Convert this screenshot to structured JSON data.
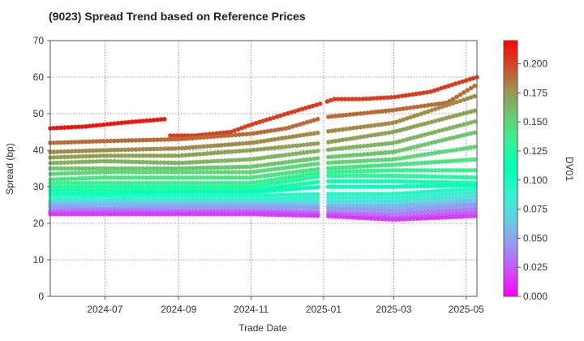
{
  "chart_data": {
    "type": "scatter",
    "title": "(9023)   Spread Trend based on Reference Prices",
    "xlabel": "Trade Date",
    "ylabel": "Spread (bp)",
    "colorbar_label": "DV01",
    "x_tick_labels": [
      "2024-07",
      "2024-09",
      "2024-11",
      "2025-01",
      "2025-03",
      "2025-05"
    ],
    "x_tick_dates": [
      "2024-07-01",
      "2024-09-01",
      "2024-11-01",
      "2025-01-01",
      "2025-03-01",
      "2025-05-01"
    ],
    "xlim": [
      "2024-05-16",
      "2025-05-10"
    ],
    "ylim": [
      0,
      70
    ],
    "y_ticks": [
      0,
      10,
      20,
      30,
      40,
      50,
      60,
      70
    ],
    "colorbar_ticks": [
      "0.000",
      "0.025",
      "0.050",
      "0.075",
      "0.100",
      "0.125",
      "0.150",
      "0.175",
      "0.200"
    ],
    "colorbar_range": [
      0,
      0.22
    ],
    "colormap": "rainbow",
    "grid": true,
    "series": [
      {
        "dv01": 0.214,
        "points": [
          [
            "2024-05-16",
            46
          ],
          [
            "2024-06-15",
            46.5
          ],
          [
            "2024-07-15",
            47.5
          ],
          [
            "2024-08-20",
            48.5
          ]
        ]
      },
      {
        "dv01": 0.203,
        "points": [
          [
            "2024-08-25",
            44
          ],
          [
            "2024-09-15",
            44
          ],
          [
            "2024-10-15",
            45
          ],
          [
            "2024-11-01",
            47
          ],
          [
            "2024-12-01",
            50
          ],
          [
            "2025-01-01",
            53
          ],
          [
            "2025-01-10",
            54
          ],
          [
            "2025-02-01",
            54
          ],
          [
            "2025-03-01",
            54.5
          ],
          [
            "2025-04-01",
            56
          ],
          [
            "2025-04-20",
            58
          ],
          [
            "2025-05-10",
            60
          ]
        ]
      },
      {
        "dv01": 0.19,
        "points": [
          [
            "2024-05-16",
            42
          ],
          [
            "2024-07-01",
            42.5
          ],
          [
            "2024-09-01",
            43
          ],
          [
            "2024-11-01",
            44.5
          ],
          [
            "2024-12-01",
            46
          ],
          [
            "2025-01-01",
            49
          ],
          [
            "2025-03-01",
            51
          ],
          [
            "2025-04-15",
            53
          ],
          [
            "2025-05-10",
            58
          ]
        ]
      },
      {
        "dv01": 0.18,
        "points": [
          [
            "2024-05-16",
            39.5
          ],
          [
            "2024-07-01",
            40
          ],
          [
            "2024-09-01",
            40.5
          ],
          [
            "2024-11-01",
            42
          ],
          [
            "2025-01-01",
            45
          ],
          [
            "2025-03-01",
            47.5
          ],
          [
            "2025-05-10",
            55
          ]
        ]
      },
      {
        "dv01": 0.172,
        "points": [
          [
            "2024-05-16",
            38
          ],
          [
            "2024-07-01",
            38.5
          ],
          [
            "2024-09-01",
            38.5
          ],
          [
            "2024-11-01",
            40
          ],
          [
            "2025-01-01",
            42
          ],
          [
            "2025-03-01",
            45
          ],
          [
            "2025-05-10",
            51
          ]
        ]
      },
      {
        "dv01": 0.165,
        "points": [
          [
            "2024-05-16",
            36.5
          ],
          [
            "2024-07-01",
            37
          ],
          [
            "2024-09-01",
            36.5
          ],
          [
            "2024-11-01",
            37.5
          ],
          [
            "2025-01-01",
            40
          ],
          [
            "2025-03-01",
            42
          ],
          [
            "2025-05-10",
            48
          ]
        ]
      },
      {
        "dv01": 0.158,
        "points": [
          [
            "2024-05-16",
            35
          ],
          [
            "2024-07-01",
            35
          ],
          [
            "2024-09-01",
            35
          ],
          [
            "2024-11-01",
            35.5
          ],
          [
            "2025-01-01",
            38
          ],
          [
            "2025-03-01",
            39.5
          ],
          [
            "2025-05-10",
            45
          ]
        ]
      },
      {
        "dv01": 0.15,
        "points": [
          [
            "2024-05-16",
            33.5
          ],
          [
            "2024-07-01",
            34
          ],
          [
            "2024-09-01",
            34
          ],
          [
            "2024-11-01",
            34
          ],
          [
            "2025-01-01",
            36.5
          ],
          [
            "2025-03-01",
            37.5
          ],
          [
            "2025-05-10",
            41
          ]
        ]
      },
      {
        "dv01": 0.143,
        "points": [
          [
            "2024-05-16",
            32
          ],
          [
            "2024-07-01",
            32.5
          ],
          [
            "2024-09-01",
            32.5
          ],
          [
            "2024-11-01",
            32.5
          ],
          [
            "2025-01-01",
            35
          ],
          [
            "2025-03-01",
            36
          ],
          [
            "2025-05-10",
            37.5
          ]
        ]
      },
      {
        "dv01": 0.135,
        "points": [
          [
            "2024-05-16",
            31
          ],
          [
            "2024-07-01",
            31
          ],
          [
            "2024-09-01",
            31
          ],
          [
            "2024-11-01",
            31
          ],
          [
            "2025-01-01",
            34
          ],
          [
            "2025-03-01",
            34.5
          ],
          [
            "2025-05-10",
            34.5
          ]
        ]
      },
      {
        "dv01": 0.127,
        "points": [
          [
            "2024-05-16",
            30
          ],
          [
            "2024-07-01",
            30
          ],
          [
            "2024-09-01",
            30
          ],
          [
            "2024-11-01",
            30
          ],
          [
            "2025-01-01",
            33
          ],
          [
            "2025-03-01",
            33
          ],
          [
            "2025-05-10",
            32.5
          ]
        ]
      },
      {
        "dv01": 0.118,
        "points": [
          [
            "2024-05-16",
            29
          ],
          [
            "2024-07-01",
            29
          ],
          [
            "2024-09-01",
            29
          ],
          [
            "2024-11-01",
            29
          ],
          [
            "2025-01-01",
            31.5
          ],
          [
            "2025-03-01",
            31.5
          ],
          [
            "2025-05-10",
            31
          ]
        ]
      },
      {
        "dv01": 0.108,
        "points": [
          [
            "2024-05-16",
            28
          ],
          [
            "2024-07-01",
            28
          ],
          [
            "2024-09-01",
            28.5
          ],
          [
            "2024-11-01",
            28.5
          ],
          [
            "2025-01-01",
            30
          ],
          [
            "2025-03-01",
            30
          ],
          [
            "2025-05-10",
            30.5
          ]
        ]
      },
      {
        "dv01": 0.097,
        "points": [
          [
            "2024-05-16",
            27.5
          ],
          [
            "2024-07-01",
            27.5
          ],
          [
            "2024-09-01",
            27.5
          ],
          [
            "2024-11-01",
            27.5
          ],
          [
            "2025-01-01",
            28
          ],
          [
            "2025-03-01",
            28
          ],
          [
            "2025-05-10",
            29.5
          ]
        ]
      },
      {
        "dv01": 0.086,
        "points": [
          [
            "2024-05-16",
            26.5
          ],
          [
            "2024-07-01",
            26.5
          ],
          [
            "2024-09-01",
            26.5
          ],
          [
            "2024-11-01",
            26.5
          ],
          [
            "2025-01-01",
            27
          ],
          [
            "2025-03-01",
            27
          ],
          [
            "2025-05-10",
            28.5
          ]
        ]
      },
      {
        "dv01": 0.076,
        "points": [
          [
            "2024-05-16",
            26
          ],
          [
            "2024-07-01",
            26
          ],
          [
            "2024-09-01",
            26
          ],
          [
            "2024-11-01",
            26
          ],
          [
            "2025-01-01",
            26
          ],
          [
            "2025-03-01",
            26
          ],
          [
            "2025-05-10",
            27.5
          ]
        ]
      },
      {
        "dv01": 0.066,
        "points": [
          [
            "2024-05-16",
            25.5
          ],
          [
            "2024-07-01",
            25.5
          ],
          [
            "2024-09-01",
            25.5
          ],
          [
            "2024-11-01",
            25.5
          ],
          [
            "2025-01-01",
            25
          ],
          [
            "2025-03-01",
            25
          ],
          [
            "2025-05-10",
            26.5
          ]
        ]
      },
      {
        "dv01": 0.056,
        "points": [
          [
            "2024-05-16",
            25
          ],
          [
            "2024-07-01",
            25
          ],
          [
            "2024-09-01",
            25
          ],
          [
            "2024-11-01",
            25
          ],
          [
            "2025-01-01",
            24.5
          ],
          [
            "2025-03-01",
            24.5
          ],
          [
            "2025-05-10",
            25.5
          ]
        ]
      },
      {
        "dv01": 0.046,
        "points": [
          [
            "2024-05-16",
            24.5
          ],
          [
            "2024-07-01",
            24
          ],
          [
            "2024-09-01",
            24.5
          ],
          [
            "2024-11-01",
            24.5
          ],
          [
            "2025-01-01",
            24
          ],
          [
            "2025-03-01",
            23.5
          ],
          [
            "2025-05-10",
            25
          ]
        ]
      },
      {
        "dv01": 0.036,
        "points": [
          [
            "2024-05-16",
            23.5
          ],
          [
            "2024-07-01",
            23.5
          ],
          [
            "2024-09-01",
            23.5
          ],
          [
            "2024-11-01",
            23.5
          ],
          [
            "2025-01-01",
            23
          ],
          [
            "2025-03-01",
            22.5
          ],
          [
            "2025-05-10",
            24
          ]
        ]
      },
      {
        "dv01": 0.026,
        "points": [
          [
            "2024-05-16",
            23
          ],
          [
            "2024-07-01",
            23
          ],
          [
            "2024-09-01",
            23
          ],
          [
            "2024-11-01",
            23
          ],
          [
            "2025-01-01",
            22.5
          ],
          [
            "2025-03-01",
            21.5
          ],
          [
            "2025-05-10",
            23
          ]
        ]
      },
      {
        "dv01": 0.016,
        "points": [
          [
            "2024-05-16",
            22.5
          ],
          [
            "2024-07-01",
            22.5
          ],
          [
            "2024-09-01",
            22.5
          ],
          [
            "2024-11-01",
            22.5
          ],
          [
            "2025-01-01",
            22
          ],
          [
            "2025-03-01",
            21
          ],
          [
            "2025-05-10",
            22
          ]
        ]
      }
    ]
  }
}
